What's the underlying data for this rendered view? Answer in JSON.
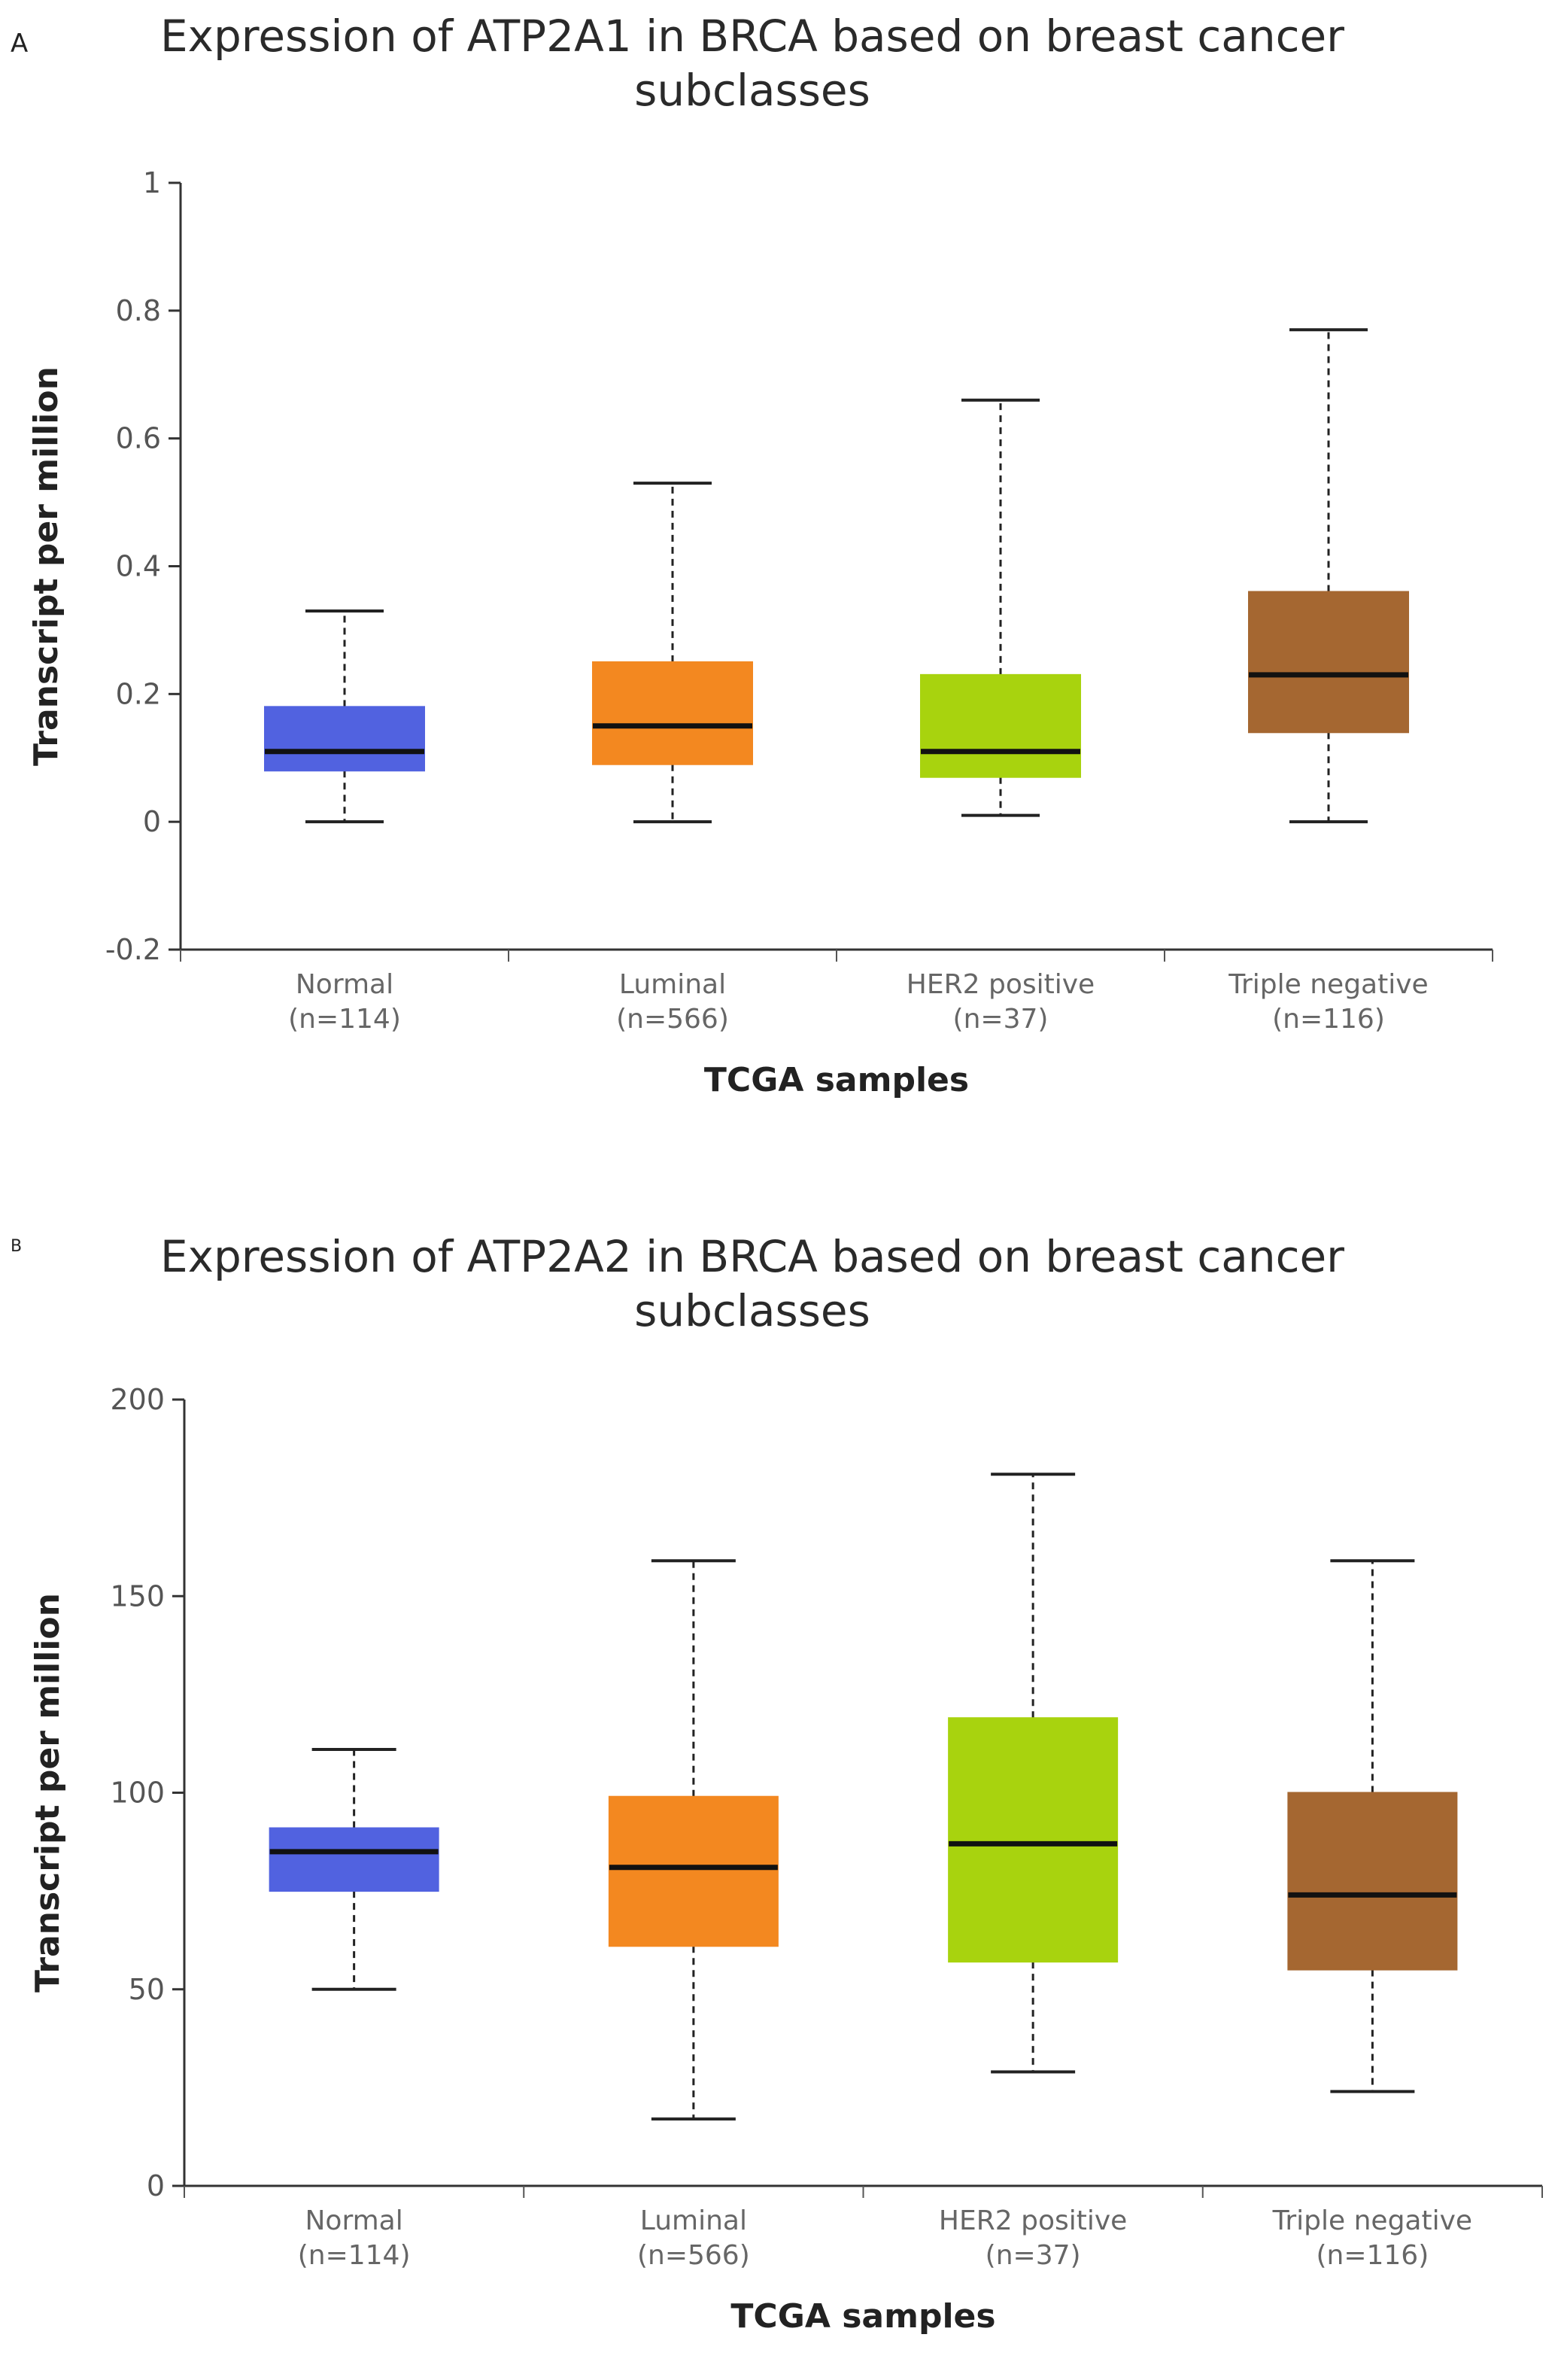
{
  "chart_data": [
    {
      "panel": "A",
      "type": "box",
      "title": "Expression of ATP2A1 in BRCA based on breast cancer subclasses",
      "xlabel": "TCGA samples",
      "ylabel": "Transcript per million",
      "ylim": [
        -0.2,
        1
      ],
      "yticks": [
        "-0.2",
        "0",
        "0.2",
        "0.4",
        "0.6",
        "0.8",
        "1"
      ],
      "categories": [
        {
          "label": "Normal",
          "n": "(n=114)",
          "color": "#5162e0",
          "whisker_low": 0.0,
          "q1": 0.08,
          "median": 0.11,
          "q3": 0.18,
          "whisker_high": 0.33
        },
        {
          "label": "Luminal",
          "n": "(n=566)",
          "color": "#f38820",
          "whisker_low": 0.0,
          "q1": 0.09,
          "median": 0.15,
          "q3": 0.25,
          "whisker_high": 0.53
        },
        {
          "label": "HER2 positive",
          "n": "(n=37)",
          "color": "#a8d30e",
          "whisker_low": 0.01,
          "q1": 0.07,
          "median": 0.11,
          "q3": 0.23,
          "whisker_high": 0.66
        },
        {
          "label": "Triple negative",
          "n": "(n=116)",
          "color": "#a56731",
          "whisker_low": 0.0,
          "q1": 0.14,
          "median": 0.23,
          "q3": 0.36,
          "whisker_high": 0.77
        }
      ]
    },
    {
      "panel": "B",
      "type": "box",
      "title": "Expression of ATP2A2 in BRCA based on breast cancer subclasses",
      "xlabel": "TCGA samples",
      "ylabel": "Transcript per million",
      "ylim": [
        0,
        200
      ],
      "yticks": [
        "0",
        "50",
        "100",
        "150",
        "200"
      ],
      "categories": [
        {
          "label": "Normal",
          "n": "(n=114)",
          "color": "#5162e0",
          "whisker_low": 50,
          "q1": 75,
          "median": 85,
          "q3": 91,
          "whisker_high": 111
        },
        {
          "label": "Luminal",
          "n": "(n=566)",
          "color": "#f38820",
          "whisker_low": 17,
          "q1": 61,
          "median": 81,
          "q3": 99,
          "whisker_high": 159
        },
        {
          "label": "HER2 positive",
          "n": "(n=37)",
          "color": "#a8d30e",
          "whisker_low": 29,
          "q1": 57,
          "median": 87,
          "q3": 119,
          "whisker_high": 181
        },
        {
          "label": "Triple negative",
          "n": "(n=116)",
          "color": "#a56731",
          "whisker_low": 24,
          "q1": 55,
          "median": 74,
          "q3": 100,
          "whisker_high": 159
        }
      ]
    }
  ],
  "panel_labels": [
    "A",
    "B"
  ]
}
